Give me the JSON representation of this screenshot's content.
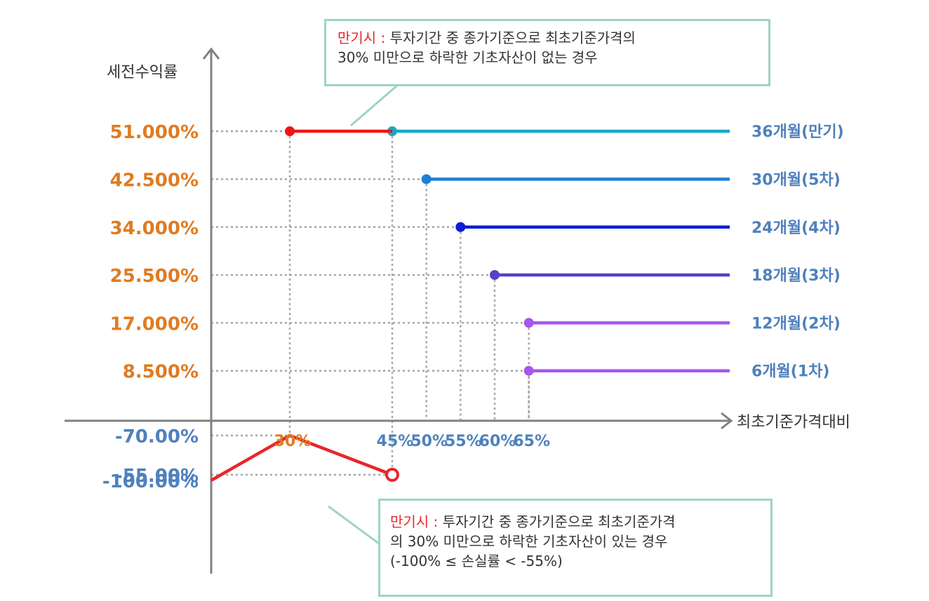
{
  "chart_data": {
    "type": "line",
    "ylabel": "세전수익률",
    "xlabel": "최초기준가격대비",
    "colors": {
      "positive_label": "#e07b20",
      "negative_label": "#4f81bd",
      "x_30": "#e07b20",
      "x_other": "#4f81bd",
      "series_label": "#4f81bd",
      "loss_line": "#e8262b",
      "axis": "#808080",
      "grid": "#a6a6a6",
      "box_border": "#9fd3c4"
    },
    "y_positive_ticks": [
      {
        "value": 51.0,
        "label": "51.000%"
      },
      {
        "value": 42.5,
        "label": "42.500%"
      },
      {
        "value": 34.0,
        "label": "34.000%"
      },
      {
        "value": 25.5,
        "label": "25.500%"
      },
      {
        "value": 17.0,
        "label": "17.000%"
      },
      {
        "value": 8.5,
        "label": "8.500%"
      }
    ],
    "y_negative_ticks": [
      {
        "value": -55,
        "label": "-55.00%"
      },
      {
        "value": -70,
        "label": "-70.00%"
      },
      {
        "value": -100,
        "label": "-100.00%"
      }
    ],
    "x_ticks": [
      {
        "value": 30,
        "label": "30%"
      },
      {
        "value": 45,
        "label": "45%"
      },
      {
        "value": 50,
        "label": "50%"
      },
      {
        "value": 55,
        "label": "55%"
      },
      {
        "value": 60,
        "label": "60%"
      },
      {
        "value": 65,
        "label": "65%"
      }
    ],
    "series": [
      {
        "name": "36개월(만기)",
        "barrier": 45,
        "return": 51.0,
        "color": "#17a9c2"
      },
      {
        "name": "30개월(5차)",
        "barrier": 50,
        "return": 42.5,
        "color": "#1e7fd6"
      },
      {
        "name": "24개월(4차)",
        "barrier": 55,
        "return": 34.0,
        "color": "#0a1ed6"
      },
      {
        "name": "18개월(3차)",
        "barrier": 60,
        "return": 25.5,
        "color": "#5b3fc4"
      },
      {
        "name": "12개월(2차)",
        "barrier": 65,
        "return": 17.0,
        "color": "#a855f0"
      },
      {
        "name": "6개월(1차)",
        "barrier": 65,
        "return": 8.5,
        "color": "#a855f0"
      }
    ],
    "maturity_no_knockin": {
      "from": 30,
      "to": 45,
      "return": 51.0,
      "color": "#f01414"
    },
    "maturity_knockin": {
      "points": [
        [
          0,
          -100
        ],
        [
          30,
          -70
        ],
        [
          45,
          -55
        ]
      ],
      "open_end": true,
      "color": "#e8262b"
    }
  },
  "annotations": {
    "top": {
      "prefix": "만기시 :",
      "line1": " 투자기간 중 종가기준으로 최초기준가격의",
      "line2": "30% 미만으로 하락한 기초자산이 없는 경우"
    },
    "bottom": {
      "prefix": "만기시 :",
      "line1": " 투자기간 중 종가기준으로 최초기준가격",
      "line2": "의 30% 미만으로 하락한 기초자산이 있는 경우",
      "line3": "(-100% ≤ 손실률 < -55%)"
    }
  }
}
